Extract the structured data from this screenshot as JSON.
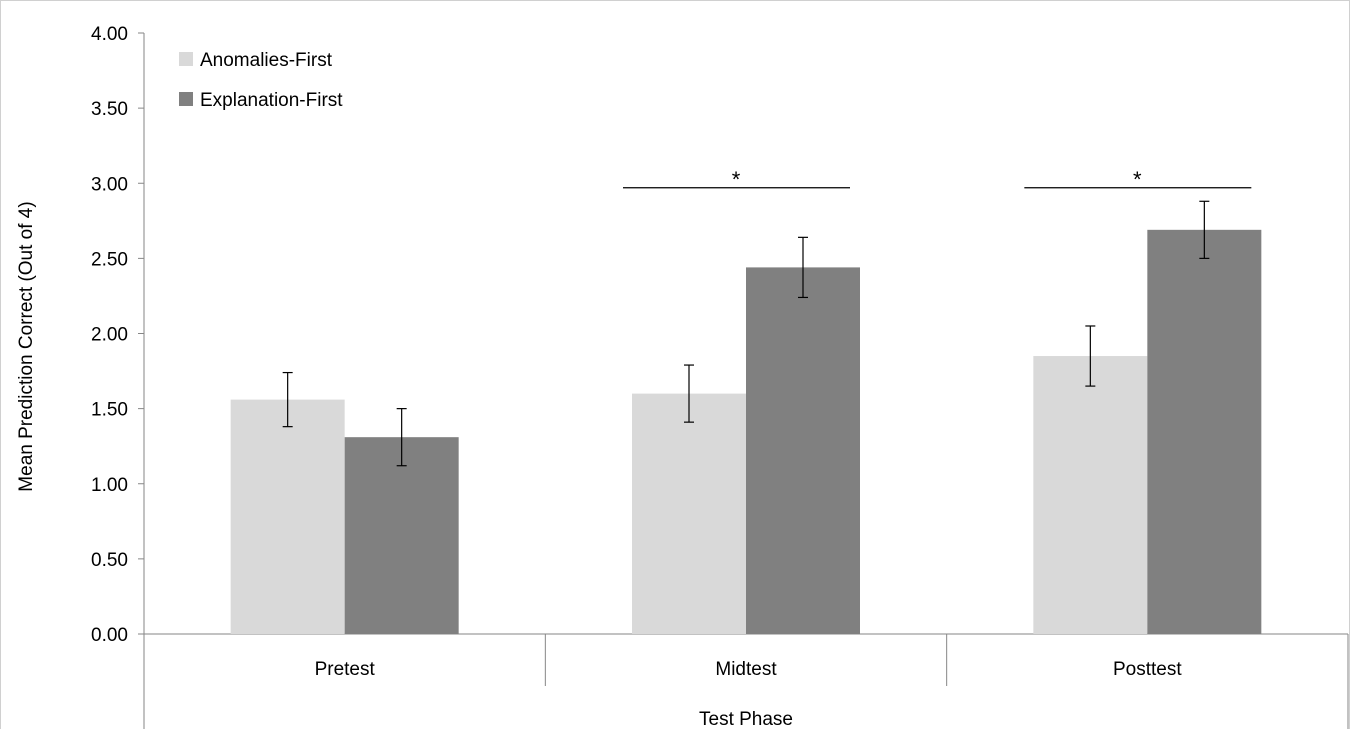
{
  "chart_data": {
    "type": "bar",
    "categories": [
      "Pretest",
      "Midtest",
      "Posttest"
    ],
    "series": [
      {
        "name": "Anomalies-First",
        "values": [
          1.56,
          1.6,
          1.85
        ],
        "errors": [
          0.18,
          0.19,
          0.2
        ],
        "color": "#d9d9d9"
      },
      {
        "name": "Explanation-First",
        "values": [
          1.31,
          2.44,
          2.69
        ],
        "errors": [
          0.19,
          0.2,
          0.19
        ],
        "color": "#808080"
      }
    ],
    "yticks": [
      "0.00",
      "0.50",
      "1.00",
      "1.50",
      "2.00",
      "2.50",
      "3.00",
      "3.50",
      "4.00"
    ],
    "ylim": [
      0,
      4
    ],
    "xlabel": "Test Phase",
    "ylabel": "Mean Prediction Correct (Out of 4)",
    "legend_position": "top-left",
    "significance": [
      {
        "category": "Midtest",
        "y": 2.97,
        "label": "*"
      },
      {
        "category": "Posttest",
        "y": 2.97,
        "label": "*"
      }
    ],
    "grid": false
  }
}
